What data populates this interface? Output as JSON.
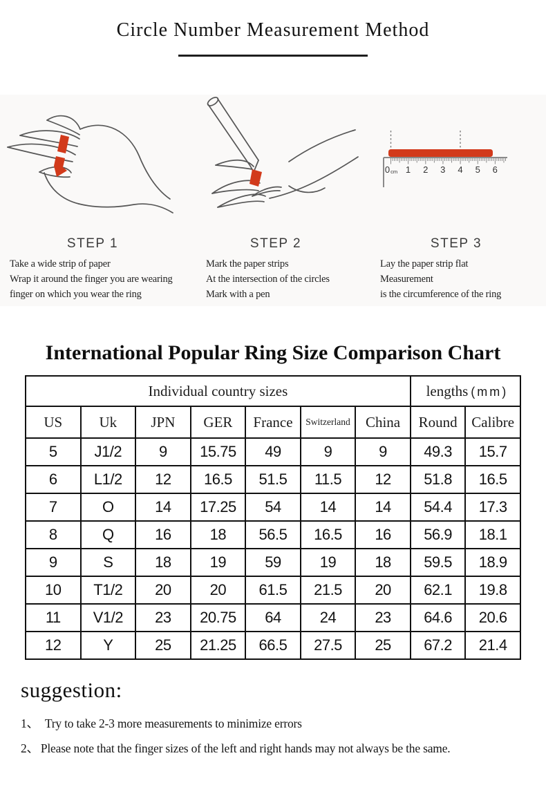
{
  "header": {
    "title": "Circle Number Measurement Method"
  },
  "steps": [
    {
      "label": "STEP 1",
      "lines": [
        "Take a wide strip of paper",
        "Wrap it around the finger you are wearing",
        "finger on which you wear the ring"
      ]
    },
    {
      "label": "STEP 2",
      "lines": [
        "Mark the paper strips",
        "At the intersection of the circles",
        "Mark with a pen"
      ]
    },
    {
      "label": "STEP 3",
      "lines": [
        "Lay the paper strip flat",
        "Measurement",
        "is the circumference of the ring"
      ]
    }
  ],
  "ruler": {
    "zero": "0",
    "unit": "cm",
    "ticks": [
      "1",
      "2",
      "3",
      "4",
      "5",
      "6"
    ]
  },
  "chart": {
    "title": "International Popular Ring Size Comparison Chart",
    "group_header": "Individual country sizes",
    "lengths_label": "lengths",
    "lengths_suffix": "(mm)",
    "columns": [
      "US",
      "Uk",
      "JPN",
      "GER",
      "France",
      "Switzerland",
      "China",
      "Round",
      "Calibre"
    ],
    "rows": [
      [
        "5",
        "J1/2",
        "9",
        "15.75",
        "49",
        "9",
        "9",
        "49.3",
        "15.7"
      ],
      [
        "6",
        "L1/2",
        "12",
        "16.5",
        "51.5",
        "11.5",
        "12",
        "51.8",
        "16.5"
      ],
      [
        "7",
        "O",
        "14",
        "17.25",
        "54",
        "14",
        "14",
        "54.4",
        "17.3"
      ],
      [
        "8",
        "Q",
        "16",
        "18",
        "56.5",
        "16.5",
        "16",
        "56.9",
        "18.1"
      ],
      [
        "9",
        "S",
        "18",
        "19",
        "59",
        "19",
        "18",
        "59.5",
        "18.9"
      ],
      [
        "10",
        "T1/2",
        "20",
        "20",
        "61.5",
        "21.5",
        "20",
        "62.1",
        "19.8"
      ],
      [
        "11",
        "V1/2",
        "23",
        "20.75",
        "64",
        "24",
        "23",
        "64.6",
        "20.6"
      ],
      [
        "12",
        "Y",
        "25",
        "21.25",
        "66.5",
        "27.5",
        "25",
        "67.2",
        "21.4"
      ]
    ]
  },
  "suggestion": {
    "heading": "suggestion:",
    "items": [
      {
        "num": "1、",
        "text": "Try to take 2-3 more measurements to minimize errors"
      },
      {
        "num": "2、",
        "text": "Please note that the finger sizes of the left and right hands may not always be the same."
      }
    ]
  },
  "colors": {
    "accent_red": "#d23a1b",
    "line_gray": "#555555",
    "border_black": "#111111"
  }
}
